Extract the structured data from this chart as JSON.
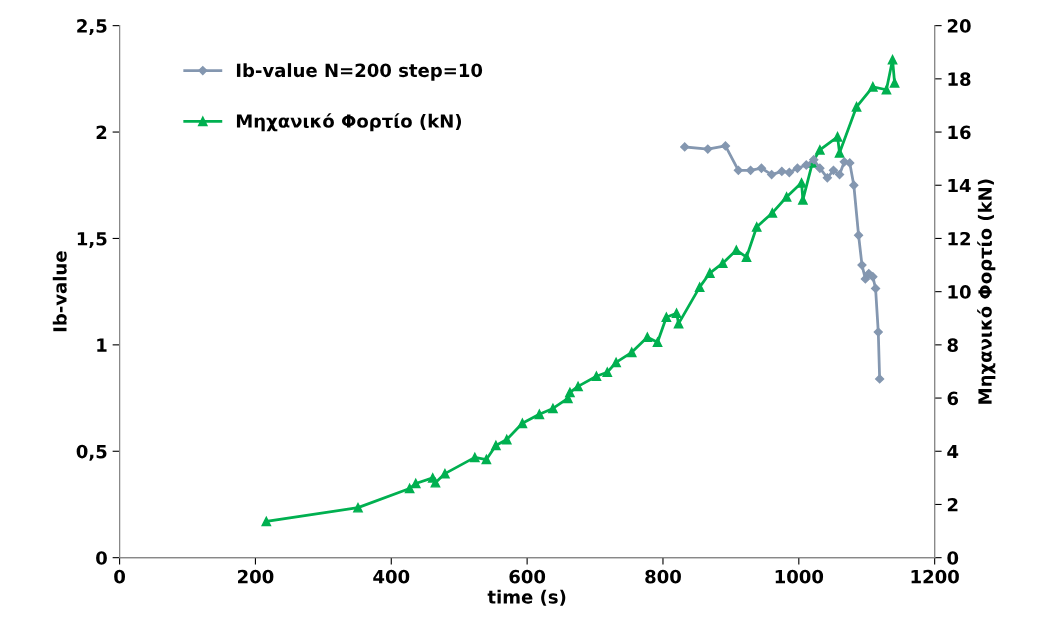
{
  "chart_data": {
    "type": "line",
    "xlabel": "time (s)",
    "ylabel": "Ib-value",
    "y2label": "Μηχανικό Φορτίο (kN)",
    "xlim": [
      0,
      1200
    ],
    "xticks": [
      0,
      200,
      400,
      600,
      800,
      1000,
      1200
    ],
    "ylim": [
      0,
      2.5
    ],
    "yticks": [
      0,
      {
        "value": 0.5,
        "label": "0,5"
      },
      1,
      {
        "value": 1.5,
        "label": "1,5"
      },
      2,
      {
        "value": 2.5,
        "label": "2,5"
      }
    ],
    "y2lim": [
      0,
      20
    ],
    "y2ticks": [
      0,
      2,
      4,
      6,
      8,
      10,
      12,
      14,
      16,
      18,
      20
    ],
    "grid": false,
    "legend": "top left",
    "line_style": "solid",
    "series": [
      {
        "name": "Ib-value N=200 step=10",
        "color": "#8497b0",
        "marker": "diamond",
        "x": [
          832,
          866,
          892,
          911,
          929,
          945,
          960,
          975,
          986,
          998,
          1011,
          1022,
          1031,
          1042,
          1051,
          1060,
          1067,
          1075,
          1081,
          1088,
          1093,
          1098,
          1103,
          1109,
          1113,
          1117,
          1119
        ],
        "values": [
          1.93,
          1.92,
          1.935,
          1.82,
          1.82,
          1.83,
          1.8,
          1.815,
          1.81,
          1.83,
          1.845,
          1.87,
          1.83,
          1.785,
          1.82,
          1.8,
          1.86,
          1.855,
          1.75,
          1.515,
          1.375,
          1.31,
          1.335,
          1.32,
          1.265,
          1.06,
          0.84
        ]
      },
      {
        "name": "Μηχανικό Φορτίο (kN)",
        "color": "#00b050",
        "marker": "triangle",
        "axis": "y2",
        "x": [
          216,
          351,
          427,
          436,
          461,
          465,
          479,
          523,
          540,
          554,
          570,
          593,
          618,
          638,
          660,
          663,
          675,
          702,
          718,
          731,
          754,
          777,
          792,
          805,
          820,
          823,
          854,
          869,
          888,
          908,
          923,
          938,
          961,
          982,
          1004,
          1006,
          1020,
          1031,
          1057,
          1060,
          1085,
          1109,
          1129,
          1138,
          1141
        ],
        "values": [
          1.36,
          1.88,
          2.6,
          2.79,
          3.0,
          2.82,
          3.16,
          3.77,
          3.69,
          4.22,
          4.44,
          5.05,
          5.39,
          5.61,
          5.99,
          6.21,
          6.44,
          6.82,
          6.97,
          7.34,
          7.72,
          8.29,
          8.1,
          9.04,
          9.19,
          8.8,
          10.17,
          10.7,
          11.07,
          11.56,
          11.3,
          12.43,
          12.96,
          13.56,
          14.09,
          13.45,
          14.84,
          15.33,
          15.82,
          15.22,
          16.95,
          17.7,
          17.59,
          18.72,
          17.85
        ]
      }
    ]
  }
}
